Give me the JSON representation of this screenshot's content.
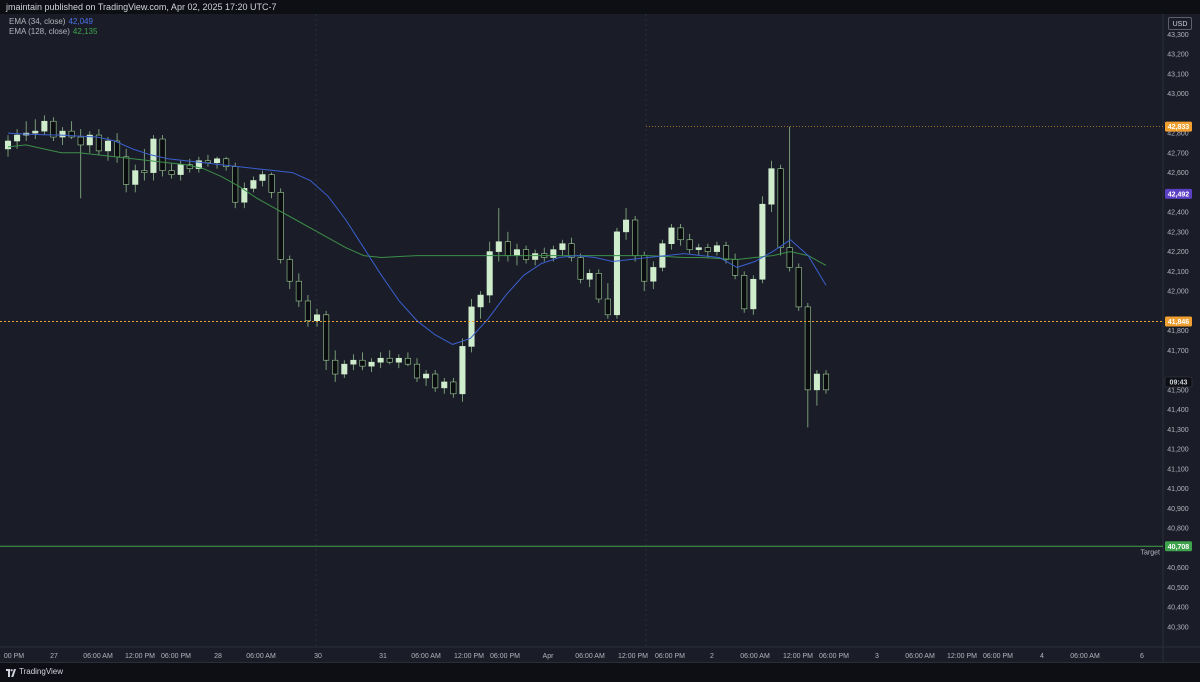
{
  "header": {
    "publisher_line": "jmaintain published on TradingView.com, Apr 02, 2025 17:20 UTC-7"
  },
  "legend": {
    "ema34_label": "EMA (34, close)",
    "ema34_value": "42,049",
    "ema128_label": "EMA (128, close)",
    "ema128_value": "42,135"
  },
  "currency_label": "USD",
  "footer": {
    "brand": "TradingView"
  },
  "colors": {
    "background": "#1a1d27",
    "candle_up": "#cfeccc",
    "candle_down": "#0b0c10",
    "wick": "#8fb88a",
    "ema34": "#3a5fcf",
    "ema128": "#3c8f4a",
    "price_line_orange": "#f0a030",
    "price_line_green": "#3fa34d",
    "purple_badge": "#5b3fc4",
    "target_text": "#3b8ae8"
  },
  "chart_data": {
    "type": "candlestick",
    "price_axis": {
      "range": [
        40200,
        43400
      ],
      "ticks": [
        40300,
        40400,
        40500,
        40600,
        40800,
        40900,
        41000,
        41100,
        41200,
        41300,
        41400,
        41500,
        41700,
        41800,
        42000,
        42100,
        42200,
        42300,
        42400,
        42600,
        42700,
        42800,
        43000,
        43100,
        43200,
        43300
      ],
      "tick_labels": [
        "40,300",
        "40,400",
        "40,500",
        "40,600",
        "40,800",
        "40,900",
        "41,000",
        "41,100",
        "41,200",
        "41,300",
        "41,400",
        "41,500",
        "41,700",
        "41,800",
        "42,000",
        "42,100",
        "42,200",
        "42,300",
        "42,400",
        "42,600",
        "42,700",
        "42,800",
        "43,000",
        "43,100",
        "43,200",
        "43,300"
      ]
    },
    "time_axis_labels": [
      "00 PM",
      "27",
      "06:00 AM",
      "12:00 PM",
      "06:00 PM",
      "28",
      "06:00 AM",
      "30",
      "31",
      "06:00 AM",
      "12:00 PM",
      "06:00 PM",
      "Apr",
      "06:00 AM",
      "12:00 PM",
      "06:00 PM",
      "2",
      "06:00 AM",
      "12:00 PM",
      "06:00 PM",
      "3",
      "06:00 AM",
      "12:00 PM",
      "06:00 PM",
      "4",
      "06:00 AM",
      "6"
    ],
    "price_lines": [
      {
        "name": "high",
        "value": 42833,
        "label": "42,833"
      },
      {
        "name": "ema-level",
        "value": 42492,
        "label": "42,492"
      },
      {
        "name": "level",
        "value": 41846,
        "label": "41,846"
      },
      {
        "name": "target",
        "value": 40708,
        "label": "40,708",
        "text": "Target"
      }
    ],
    "current_time_label": "09:43",
    "candles": [
      {
        "o": 42720,
        "h": 42790,
        "l": 42680,
        "c": 42760
      },
      {
        "o": 42760,
        "h": 42820,
        "l": 42720,
        "c": 42790
      },
      {
        "o": 42790,
        "h": 42860,
        "l": 42760,
        "c": 42800
      },
      {
        "o": 42800,
        "h": 42870,
        "l": 42770,
        "c": 42810
      },
      {
        "o": 42810,
        "h": 42890,
        "l": 42790,
        "c": 42860
      },
      {
        "o": 42860,
        "h": 42880,
        "l": 42760,
        "c": 42780
      },
      {
        "o": 42780,
        "h": 42830,
        "l": 42740,
        "c": 42810
      },
      {
        "o": 42810,
        "h": 42860,
        "l": 42770,
        "c": 42780
      },
      {
        "o": 42780,
        "h": 42820,
        "l": 42470,
        "c": 42740
      },
      {
        "o": 42740,
        "h": 42810,
        "l": 42700,
        "c": 42790
      },
      {
        "o": 42790,
        "h": 42820,
        "l": 42690,
        "c": 42710
      },
      {
        "o": 42710,
        "h": 42780,
        "l": 42660,
        "c": 42760
      },
      {
        "o": 42760,
        "h": 42800,
        "l": 42650,
        "c": 42680
      },
      {
        "o": 42680,
        "h": 42720,
        "l": 42500,
        "c": 42540
      },
      {
        "o": 42540,
        "h": 42640,
        "l": 42500,
        "c": 42610
      },
      {
        "o": 42610,
        "h": 42720,
        "l": 42560,
        "c": 42600
      },
      {
        "o": 42600,
        "h": 42790,
        "l": 42560,
        "c": 42770
      },
      {
        "o": 42770,
        "h": 42790,
        "l": 42580,
        "c": 42610
      },
      {
        "o": 42610,
        "h": 42650,
        "l": 42570,
        "c": 42590
      },
      {
        "o": 42590,
        "h": 42660,
        "l": 42560,
        "c": 42640
      },
      {
        "o": 42640,
        "h": 42670,
        "l": 42600,
        "c": 42620
      },
      {
        "o": 42620,
        "h": 42680,
        "l": 42600,
        "c": 42660
      },
      {
        "o": 42660,
        "h": 42690,
        "l": 42630,
        "c": 42650
      },
      {
        "o": 42650,
        "h": 42680,
        "l": 42620,
        "c": 42670
      },
      {
        "o": 42670,
        "h": 42680,
        "l": 42610,
        "c": 42630
      },
      {
        "o": 42630,
        "h": 42650,
        "l": 42420,
        "c": 42450
      },
      {
        "o": 42450,
        "h": 42550,
        "l": 42420,
        "c": 42520
      },
      {
        "o": 42520,
        "h": 42580,
        "l": 42500,
        "c": 42560
      },
      {
        "o": 42560,
        "h": 42610,
        "l": 42530,
        "c": 42590
      },
      {
        "o": 42590,
        "h": 42600,
        "l": 42470,
        "c": 42500
      },
      {
        "o": 42500,
        "h": 42520,
        "l": 42140,
        "c": 42160
      },
      {
        "o": 42160,
        "h": 42180,
        "l": 42010,
        "c": 42050
      },
      {
        "o": 42050,
        "h": 42090,
        "l": 41920,
        "c": 41950
      },
      {
        "o": 41950,
        "h": 41980,
        "l": 41820,
        "c": 41850
      },
      {
        "o": 41850,
        "h": 41910,
        "l": 41820,
        "c": 41880
      },
      {
        "o": 41880,
        "h": 41900,
        "l": 41600,
        "c": 41650
      },
      {
        "o": 41650,
        "h": 41700,
        "l": 41540,
        "c": 41580
      },
      {
        "o": 41580,
        "h": 41650,
        "l": 41560,
        "c": 41630
      },
      {
        "o": 41630,
        "h": 41680,
        "l": 41600,
        "c": 41650
      },
      {
        "o": 41650,
        "h": 41690,
        "l": 41600,
        "c": 41620
      },
      {
        "o": 41620,
        "h": 41660,
        "l": 41590,
        "c": 41640
      },
      {
        "o": 41640,
        "h": 41690,
        "l": 41610,
        "c": 41660
      },
      {
        "o": 41660,
        "h": 41700,
        "l": 41630,
        "c": 41640
      },
      {
        "o": 41640,
        "h": 41680,
        "l": 41610,
        "c": 41660
      },
      {
        "o": 41660,
        "h": 41690,
        "l": 41620,
        "c": 41630
      },
      {
        "o": 41630,
        "h": 41660,
        "l": 41540,
        "c": 41560
      },
      {
        "o": 41560,
        "h": 41600,
        "l": 41520,
        "c": 41580
      },
      {
        "o": 41580,
        "h": 41600,
        "l": 41490,
        "c": 41510
      },
      {
        "o": 41510,
        "h": 41560,
        "l": 41480,
        "c": 41540
      },
      {
        "o": 41540,
        "h": 41560,
        "l": 41460,
        "c": 41480
      },
      {
        "o": 41480,
        "h": 41760,
        "l": 41440,
        "c": 41720
      },
      {
        "o": 41720,
        "h": 41960,
        "l": 41690,
        "c": 41920
      },
      {
        "o": 41920,
        "h": 42000,
        "l": 41860,
        "c": 41980
      },
      {
        "o": 41980,
        "h": 42250,
        "l": 41940,
        "c": 42200
      },
      {
        "o": 42200,
        "h": 42420,
        "l": 42150,
        "c": 42250
      },
      {
        "o": 42250,
        "h": 42300,
        "l": 42150,
        "c": 42180
      },
      {
        "o": 42180,
        "h": 42240,
        "l": 42130,
        "c": 42210
      },
      {
        "o": 42210,
        "h": 42230,
        "l": 42140,
        "c": 42160
      },
      {
        "o": 42160,
        "h": 42210,
        "l": 42130,
        "c": 42190
      },
      {
        "o": 42190,
        "h": 42220,
        "l": 42150,
        "c": 42170
      },
      {
        "o": 42170,
        "h": 42230,
        "l": 42150,
        "c": 42210
      },
      {
        "o": 42210,
        "h": 42260,
        "l": 42180,
        "c": 42240
      },
      {
        "o": 42240,
        "h": 42270,
        "l": 42150,
        "c": 42170
      },
      {
        "o": 42170,
        "h": 42190,
        "l": 42040,
        "c": 42060
      },
      {
        "o": 42060,
        "h": 42110,
        "l": 42020,
        "c": 42090
      },
      {
        "o": 42090,
        "h": 42110,
        "l": 41940,
        "c": 41960
      },
      {
        "o": 41960,
        "h": 42040,
        "l": 41860,
        "c": 41880
      },
      {
        "o": 41880,
        "h": 42320,
        "l": 41860,
        "c": 42300
      },
      {
        "o": 42300,
        "h": 42420,
        "l": 42260,
        "c": 42360
      },
      {
        "o": 42360,
        "h": 42380,
        "l": 42150,
        "c": 42180
      },
      {
        "o": 42180,
        "h": 42200,
        "l": 42000,
        "c": 42050
      },
      {
        "o": 42050,
        "h": 42150,
        "l": 42010,
        "c": 42120
      },
      {
        "o": 42120,
        "h": 42260,
        "l": 42100,
        "c": 42240
      },
      {
        "o": 42240,
        "h": 42340,
        "l": 42210,
        "c": 42320
      },
      {
        "o": 42320,
        "h": 42340,
        "l": 42230,
        "c": 42260
      },
      {
        "o": 42260,
        "h": 42290,
        "l": 42190,
        "c": 42210
      },
      {
        "o": 42210,
        "h": 42240,
        "l": 42180,
        "c": 42220
      },
      {
        "o": 42220,
        "h": 42240,
        "l": 42170,
        "c": 42200
      },
      {
        "o": 42200,
        "h": 42250,
        "l": 42180,
        "c": 42230
      },
      {
        "o": 42230,
        "h": 42250,
        "l": 42140,
        "c": 42160
      },
      {
        "o": 42160,
        "h": 42190,
        "l": 42060,
        "c": 42080
      },
      {
        "o": 42080,
        "h": 42100,
        "l": 41890,
        "c": 41910
      },
      {
        "o": 41910,
        "h": 42080,
        "l": 41880,
        "c": 42060
      },
      {
        "o": 42060,
        "h": 42480,
        "l": 42040,
        "c": 42440
      },
      {
        "o": 42440,
        "h": 42660,
        "l": 42400,
        "c": 42620
      },
      {
        "o": 42620,
        "h": 42640,
        "l": 42180,
        "c": 42220
      },
      {
        "o": 42220,
        "h": 42833,
        "l": 42100,
        "c": 42120
      },
      {
        "o": 42120,
        "h": 42140,
        "l": 41900,
        "c": 41920
      },
      {
        "o": 41920,
        "h": 41940,
        "l": 41310,
        "c": 41500
      },
      {
        "o": 41500,
        "h": 41600,
        "l": 41420,
        "c": 41580
      },
      {
        "o": 41580,
        "h": 41600,
        "l": 41480,
        "c": 41500
      }
    ],
    "ema34": [
      42800,
      42795,
      42792,
      42790,
      42785,
      42780,
      42760,
      42720,
      42690,
      42670,
      42660,
      42650,
      42640,
      42630,
      42620,
      42610,
      42600,
      42560,
      42480,
      42360,
      42220,
      42080,
      41950,
      41850,
      41780,
      41730,
      41760,
      41860,
      41980,
      42080,
      42140,
      42170,
      42180,
      42170,
      42150,
      42160,
      42170,
      42180,
      42190,
      42180,
      42170,
      42120,
      42150,
      42200,
      42260,
      42180,
      42030
    ],
    "ema128": [
      42730,
      42740,
      42720,
      42700,
      42700,
      42690,
      42680,
      42670,
      42660,
      42650,
      42640,
      42620,
      42580,
      42530,
      42470,
      42420,
      42370,
      42320,
      42270,
      42220,
      42180,
      42170,
      42175,
      42180,
      42180,
      42180,
      42180,
      42180,
      42180,
      42180,
      42180,
      42180,
      42180,
      42180,
      42180,
      42180,
      42180,
      42175,
      42170,
      42170,
      42165,
      42160,
      42170,
      42180,
      42200,
      42180,
      42130
    ]
  }
}
